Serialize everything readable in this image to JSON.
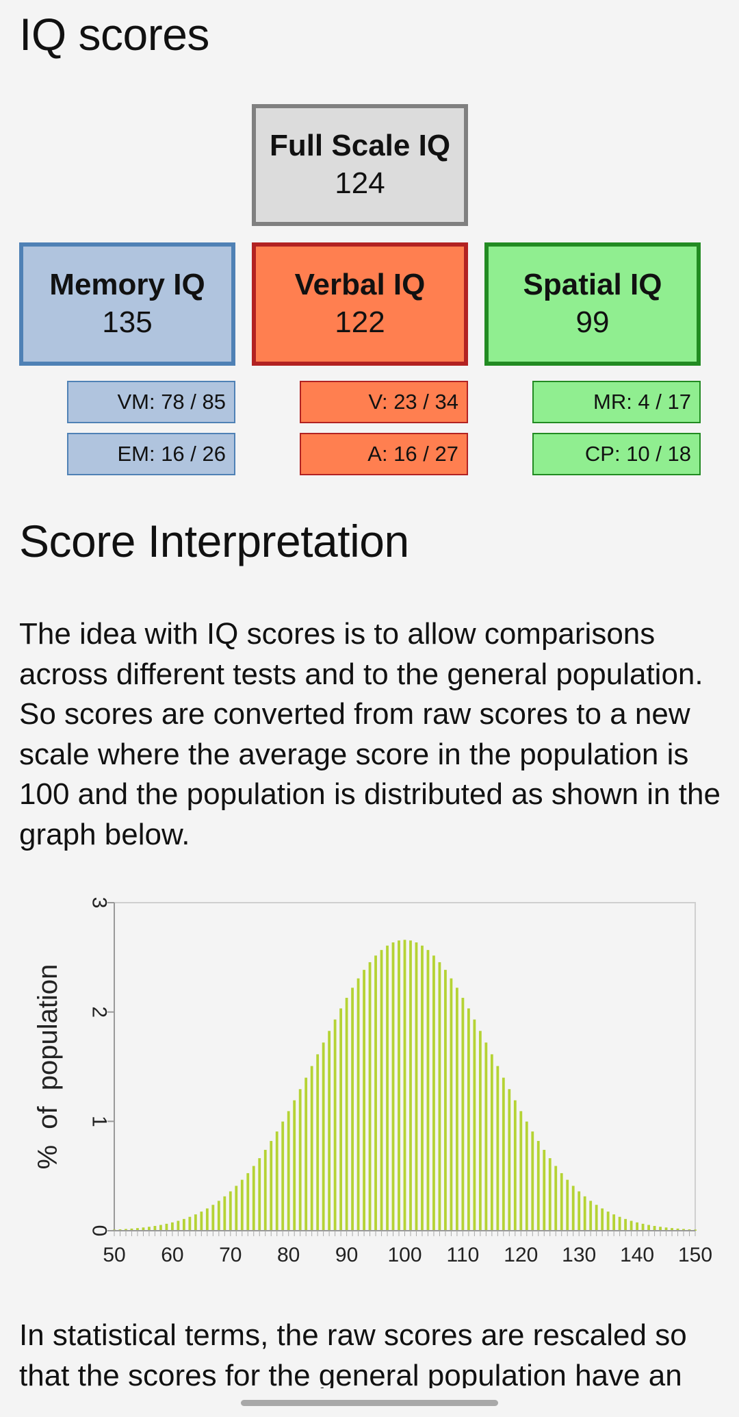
{
  "header": {
    "title": "IQ scores"
  },
  "scores": {
    "full": {
      "label": "Full Scale IQ",
      "value": "124"
    },
    "memory": {
      "label": "Memory IQ",
      "value": "135"
    },
    "verbal": {
      "label": "Verbal IQ",
      "value": "122"
    },
    "spatial": {
      "label": "Spatial IQ",
      "value": "99"
    }
  },
  "subscores": {
    "memory": [
      "VM: 78 / 85",
      "EM: 16 / 26"
    ],
    "verbal": [
      "V: 23 / 34",
      "A: 16 / 27"
    ],
    "spatial": [
      "MR: 4 / 17",
      "CP: 10 / 18"
    ]
  },
  "interpretation": {
    "title": "Score Interpretation",
    "paragraph1": "The idea with IQ scores is to allow comparisons across different tests and to the general population. So scores are converted from raw scores to a new scale where the average score in the population is 100 and the population is distributed as shown in the graph below.",
    "paragraph2": "In statistical terms, the raw scores are rescaled so that the scores for the general population have an"
  },
  "colors": {
    "full_fill": "#dcdcdc",
    "full_border": "#808080",
    "memory_fill": "#b0c4de",
    "memory_border": "#4f81b5",
    "verbal_fill": "#ff7f50",
    "verbal_border": "#b22222",
    "spatial_fill": "#90ee90",
    "spatial_border": "#228b22",
    "bar": "#b5d334"
  },
  "chart_data": {
    "type": "bar",
    "title": "",
    "xlabel": "",
    "ylabel": "% of population",
    "xlim": [
      50,
      150
    ],
    "ylim": [
      0,
      3
    ],
    "x_ticks": [
      "50",
      "60",
      "70",
      "80",
      "90",
      "100",
      "110",
      "120",
      "130",
      "140",
      "150"
    ],
    "y_ticks": [
      "0",
      "1",
      "2",
      "3"
    ],
    "distribution": {
      "kind": "normal",
      "mean": 100,
      "sd": 15,
      "x_start": 50,
      "x_end": 150,
      "step": 1
    },
    "peak_value": 2.66,
    "grid": false
  }
}
